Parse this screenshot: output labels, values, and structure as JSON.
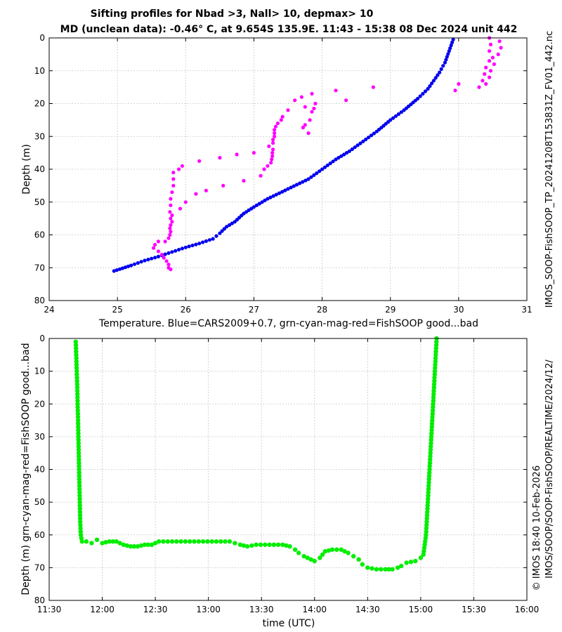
{
  "chart_data": [
    {
      "type": "scatter",
      "title": "Sifting profiles for Nbad >3, Nall> 10, depmax> 10",
      "subtitle": "MD (unclean data): -0.46° C, at 9.654S 135.9E. 11:43 - 15:38 08 Dec 2024 unit 442",
      "xlabel": "Temperature. Blue=CARS2009+0.7, grn-cyan-mag-red=FishSOOP good...bad",
      "ylabel": "Depth (m)",
      "xlim": [
        24,
        31
      ],
      "ylim": [
        80,
        0
      ],
      "xticks": [
        "24",
        "25",
        "26",
        "27",
        "28",
        "29",
        "30",
        "31"
      ],
      "yticks": [
        "0",
        "10",
        "20",
        "30",
        "40",
        "50",
        "60",
        "70",
        "80"
      ],
      "grid": true,
      "series": [
        {
          "name": "CARS2009+0.7",
          "color": "#0000ee",
          "points": [
            [
              24.95,
              71
            ],
            [
              25.2,
              69.3
            ],
            [
              25.4,
              67.8
            ],
            [
              25.6,
              66.6
            ],
            [
              25.8,
              65.2
            ],
            [
              26.0,
              63.8
            ],
            [
              26.2,
              62.6
            ],
            [
              26.4,
              61.2
            ],
            [
              26.5,
              59.5
            ],
            [
              26.6,
              57.5
            ],
            [
              26.72,
              56
            ],
            [
              26.85,
              53.5
            ],
            [
              27.0,
              51.5
            ],
            [
              27.2,
              49
            ],
            [
              27.5,
              46
            ],
            [
              27.8,
              43
            ],
            [
              28.0,
              40
            ],
            [
              28.2,
              37
            ],
            [
              28.4,
              34.5
            ],
            [
              28.6,
              31.5
            ],
            [
              28.8,
              28.5
            ],
            [
              29.0,
              25
            ],
            [
              29.2,
              22
            ],
            [
              29.4,
              18.5
            ],
            [
              29.55,
              15.5
            ],
            [
              29.72,
              10.5
            ],
            [
              29.8,
              7.5
            ],
            [
              29.86,
              4
            ],
            [
              29.92,
              0.5
            ]
          ]
        },
        {
          "name": "FishSOOP magenta",
          "color": "#ff00ff",
          "points": [
            [
              30.45,
              0
            ],
            [
              30.6,
              1
            ],
            [
              30.47,
              2
            ],
            [
              30.62,
              3
            ],
            [
              30.45,
              4
            ],
            [
              30.58,
              5
            ],
            [
              30.5,
              6
            ],
            [
              30.45,
              7
            ],
            [
              30.52,
              8
            ],
            [
              30.4,
              9
            ],
            [
              30.47,
              10
            ],
            [
              30.38,
              11
            ],
            [
              30.45,
              12
            ],
            [
              30.35,
              13
            ],
            [
              30.4,
              14
            ],
            [
              30.3,
              15
            ],
            [
              30.0,
              14
            ],
            [
              29.95,
              16
            ],
            [
              28.75,
              15
            ],
            [
              28.2,
              16
            ],
            [
              28.35,
              19
            ],
            [
              27.85,
              17
            ],
            [
              27.7,
              18
            ],
            [
              27.6,
              19
            ],
            [
              27.9,
              20
            ],
            [
              27.75,
              21
            ],
            [
              27.88,
              21.5
            ],
            [
              27.5,
              22
            ],
            [
              27.85,
              22.5
            ],
            [
              27.42,
              24
            ],
            [
              27.4,
              25
            ],
            [
              27.82,
              25
            ],
            [
              27.35,
              26
            ],
            [
              27.75,
              26.5
            ],
            [
              27.32,
              27
            ],
            [
              27.72,
              27.3
            ],
            [
              27.3,
              28
            ],
            [
              27.3,
              29
            ],
            [
              27.8,
              29
            ],
            [
              27.3,
              30
            ],
            [
              27.28,
              31
            ],
            [
              27.28,
              32
            ],
            [
              27.22,
              33
            ],
            [
              27.28,
              34
            ],
            [
              27.27,
              35
            ],
            [
              27.0,
              35
            ],
            [
              27.27,
              36
            ],
            [
              26.75,
              35.5
            ],
            [
              27.26,
              37
            ],
            [
              26.5,
              36.5
            ],
            [
              27.25,
              38
            ],
            [
              27.2,
              39
            ],
            [
              26.2,
              37.5
            ],
            [
              25.95,
              39
            ],
            [
              27.15,
              40
            ],
            [
              25.9,
              40
            ],
            [
              25.82,
              41
            ],
            [
              27.1,
              42
            ],
            [
              25.82,
              43
            ],
            [
              26.85,
              43.5
            ],
            [
              25.82,
              45
            ],
            [
              26.55,
              45
            ],
            [
              25.8,
              47
            ],
            [
              26.3,
              46.5
            ],
            [
              26.15,
              47.5
            ],
            [
              25.78,
              49
            ],
            [
              26.0,
              50
            ],
            [
              25.78,
              51
            ],
            [
              25.92,
              52
            ],
            [
              25.77,
              53
            ],
            [
              25.8,
              54
            ],
            [
              25.78,
              55
            ],
            [
              25.8,
              56
            ],
            [
              25.78,
              57
            ],
            [
              25.77,
              58
            ],
            [
              25.78,
              59
            ],
            [
              25.77,
              60
            ],
            [
              25.75,
              61
            ],
            [
              25.7,
              62
            ],
            [
              25.6,
              62
            ],
            [
              25.55,
              63
            ],
            [
              25.53,
              64
            ],
            [
              25.6,
              65
            ],
            [
              25.65,
              66
            ],
            [
              25.68,
              67
            ],
            [
              25.72,
              68
            ],
            [
              25.75,
              69
            ],
            [
              25.75,
              70
            ],
            [
              25.78,
              70.5
            ]
          ]
        }
      ]
    },
    {
      "type": "scatter",
      "title": "",
      "xlabel": "time (UTC)",
      "ylabel": "Depth (m) grn-cyan-mag-red=FishSOOP good...bad",
      "xlim": [
        "11:30",
        "16:00"
      ],
      "ylim": [
        80,
        0
      ],
      "xticks": [
        "11:30",
        "12:00",
        "12:30",
        "13:00",
        "13:30",
        "14:00",
        "14:30",
        "15:00",
        "15:30",
        "16:00"
      ],
      "yticks": [
        "0",
        "10",
        "20",
        "30",
        "40",
        "50",
        "60",
        "70",
        "80"
      ],
      "grid": true,
      "series": [
        {
          "name": "FishSOOP good (green)",
          "color": "#00ee00",
          "points": [
            [
              705,
              1
            ],
            [
              705.3,
              5
            ],
            [
              705.6,
              10
            ],
            [
              705.9,
              15
            ],
            [
              706.1,
              20
            ],
            [
              706.3,
              25
            ],
            [
              706.5,
              30
            ],
            [
              706.7,
              35
            ],
            [
              706.9,
              40
            ],
            [
              707.1,
              45
            ],
            [
              707.3,
              50
            ],
            [
              707.5,
              55
            ],
            [
              707.7,
              58
            ],
            [
              707.9,
              60
            ],
            [
              708.2,
              61
            ],
            [
              708.6,
              62
            ],
            [
              711,
              62
            ],
            [
              714,
              62.5
            ],
            [
              717,
              61.5
            ],
            [
              720,
              62.5
            ],
            [
              724,
              62
            ],
            [
              728,
              62
            ],
            [
              732,
              63
            ],
            [
              736,
              63.5
            ],
            [
              740,
              63.5
            ],
            [
              744,
              63
            ],
            [
              748,
              63
            ],
            [
              752,
              62
            ],
            [
              757,
              62
            ],
            [
              762,
              62
            ],
            [
              767,
              62
            ],
            [
              772,
              62
            ],
            [
              777,
              62
            ],
            [
              782,
              62
            ],
            [
              787,
              62
            ],
            [
              792,
              62
            ],
            [
              795,
              62.5
            ],
            [
              798,
              63
            ],
            [
              802,
              63.5
            ],
            [
              807,
              63
            ],
            [
              812,
              63
            ],
            [
              817,
              63
            ],
            [
              822,
              63
            ],
            [
              826,
              63.5
            ],
            [
              829,
              64.5
            ],
            [
              831,
              65.5
            ],
            [
              834,
              66.5
            ],
            [
              836,
              67
            ],
            [
              838,
              67.5
            ],
            [
              840,
              68
            ],
            [
              843,
              67
            ],
            [
              846,
              65
            ],
            [
              850,
              64.5
            ],
            [
              855,
              64.5
            ],
            [
              859,
              65.5
            ],
            [
              862,
              66.5
            ],
            [
              865,
              67.5
            ],
            [
              867,
              69
            ],
            [
              870,
              70
            ],
            [
              875,
              70.5
            ],
            [
              880,
              70.5
            ],
            [
              884,
              70.5
            ],
            [
              887,
              70
            ],
            [
              889,
              69.5
            ],
            [
              892,
              68.5
            ],
            [
              897,
              68
            ],
            [
              900,
              67
            ],
            [
              901.5,
              66
            ],
            [
              902,
              64
            ],
            [
              902.5,
              62
            ],
            [
              903,
              60
            ],
            [
              903.5,
              55
            ],
            [
              904,
              50
            ],
            [
              904.5,
              45
            ],
            [
              905,
              40
            ],
            [
              905.5,
              35
            ],
            [
              906,
              30
            ],
            [
              906.5,
              25
            ],
            [
              907,
              20
            ],
            [
              907.5,
              15
            ],
            [
              908,
              10
            ],
            [
              908.5,
              5
            ],
            [
              909,
              0
            ]
          ]
        }
      ]
    }
  ],
  "side_text": {
    "top_right": "IMOS_SOOP-FishSOOP_TP_20241208T153831Z_FV01_442.nc",
    "bottom_right_1": "© IMOS 18:40 10-Feb-2026",
    "bottom_right_2": "IMOS/SOOP/SOOP-FishSOOP/REALTIME/2024/12/"
  },
  "colors": {
    "cars": "#0000ee",
    "magenta": "#ff00ff",
    "green": "#00ee00"
  }
}
